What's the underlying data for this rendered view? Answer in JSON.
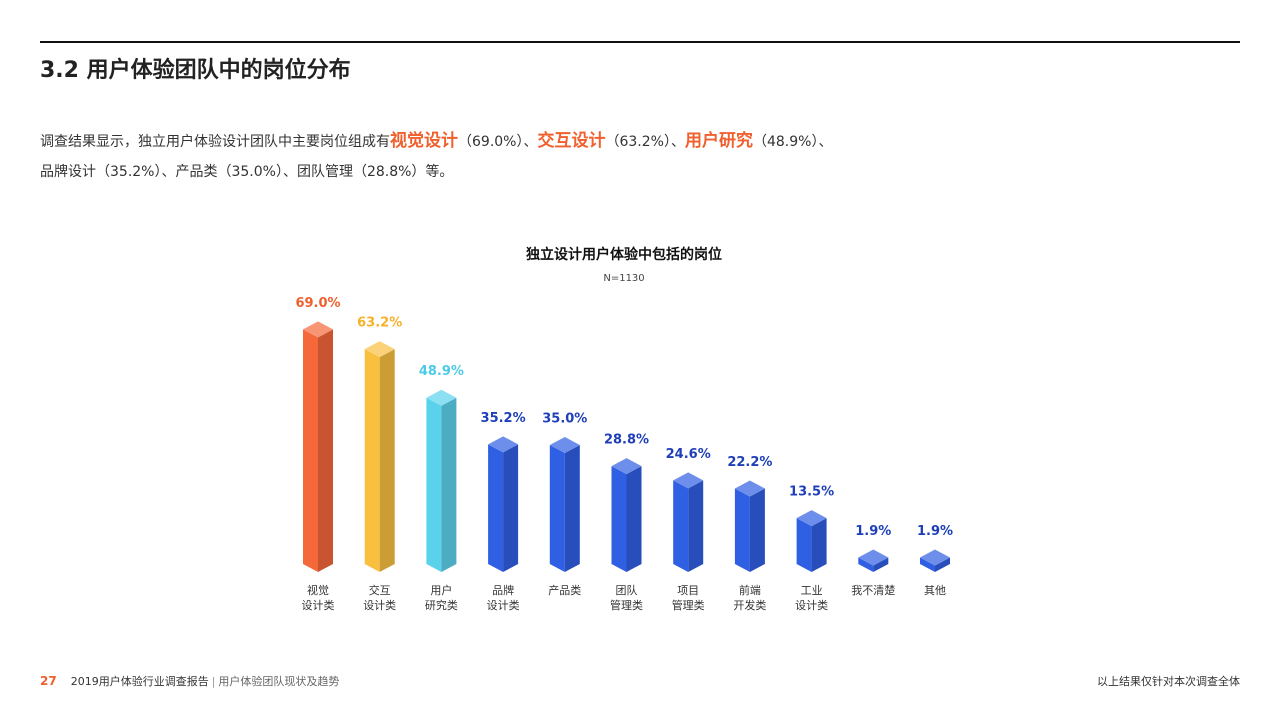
{
  "header": {
    "title": "3.2 用户体验团队中的岗位分布"
  },
  "intro": {
    "lines": [
      [
        "调查结果显示，独立用户体验设计团队中主要岗位组成有",
        "视觉设计",
        "（69.0%）、",
        "交互设计",
        "（63.2%）、",
        "用户研究",
        "（48.9%）、"
      ],
      [
        "品牌设计（35.2%）、产品类（35.0%）、团队管理（28.8%）等。"
      ]
    ]
  },
  "chart_data": {
    "type": "bar3d",
    "title": "独立设计用户体验中包括的岗位",
    "subtitle": "N=1130",
    "categories": [
      "视觉\n设计类",
      "交互\n设计类",
      "用户\n研究类",
      "品牌\n设计类",
      "产品类",
      "团队\n管理类",
      "项目\n管理类",
      "前端\n开发类",
      "工业\n设计类",
      "我不清楚",
      "其他"
    ],
    "values": [
      69.0,
      63.2,
      48.9,
      35.2,
      35.0,
      28.8,
      24.6,
      22.2,
      13.5,
      1.9,
      1.9
    ],
    "value_labels": [
      "69.0%",
      "63.2%",
      "48.9%",
      "35.2%",
      "35.0%",
      "28.8%",
      "24.6%",
      "22.2%",
      "13.5%",
      "1.9%",
      "1.9%"
    ],
    "colors": [
      "#f5683a",
      "#f9bf3f",
      "#5bd2ec",
      "#2f5fe3",
      "#2f5fe3",
      "#2f5fe3",
      "#2f5fe3",
      "#2f5fe3",
      "#2f5fe3",
      "#2f5fe3",
      "#2f5fe3"
    ],
    "label_colors": [
      "#f0602e",
      "#f5b12a",
      "#4ccbe6",
      "#1e3fb8",
      "#1e3fb8",
      "#1e3fb8",
      "#1e3fb8",
      "#1e3fb8",
      "#1e3fb8",
      "#1e3fb8",
      "#1e3fb8"
    ]
  },
  "footer": {
    "page": "27",
    "report": "2019用户体验行业调查报告",
    "section": "用户体验团队现状及趋势",
    "note": "以上结果仅针对本次调查全体"
  }
}
